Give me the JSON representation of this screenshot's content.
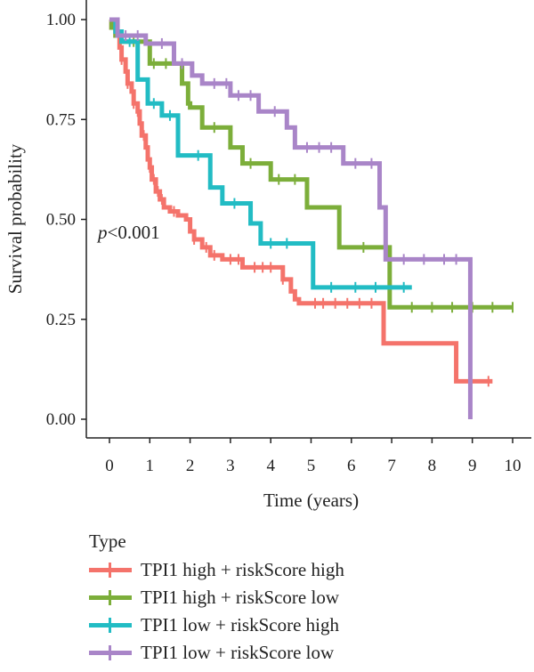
{
  "chart_data": {
    "type": "line",
    "subtype": "kaplan-meier step",
    "ylabel": "Survival probability",
    "xlabel": "Time (years)",
    "xlim": [
      -0.5,
      10.5
    ],
    "ylim": [
      0,
      1.0
    ],
    "x_ticks": [
      0,
      1,
      2,
      3,
      4,
      5,
      6,
      7,
      8,
      9,
      10
    ],
    "y_ticks": [
      "0.00",
      "0.25",
      "0.50",
      "0.75",
      "1.00"
    ],
    "annotation": "p<0.001",
    "legend": {
      "title": "Type",
      "placement": "bottom-left"
    },
    "series": [
      {
        "name": "TPI1 high + riskScore high",
        "color": "#F4736B",
        "points": [
          [
            0,
            1.0
          ],
          [
            0.05,
            0.98
          ],
          [
            0.15,
            0.96
          ],
          [
            0.25,
            0.93
          ],
          [
            0.3,
            0.9
          ],
          [
            0.4,
            0.87
          ],
          [
            0.45,
            0.84
          ],
          [
            0.55,
            0.82
          ],
          [
            0.6,
            0.79
          ],
          [
            0.7,
            0.77
          ],
          [
            0.75,
            0.74
          ],
          [
            0.8,
            0.71
          ],
          [
            0.9,
            0.68
          ],
          [
            0.95,
            0.65
          ],
          [
            1.0,
            0.63
          ],
          [
            1.05,
            0.6
          ],
          [
            1.15,
            0.57
          ],
          [
            1.25,
            0.55
          ],
          [
            1.35,
            0.53
          ],
          [
            1.5,
            0.52
          ],
          [
            1.7,
            0.51
          ],
          [
            1.9,
            0.5
          ],
          [
            2.0,
            0.47
          ],
          [
            2.1,
            0.45
          ],
          [
            2.3,
            0.43
          ],
          [
            2.5,
            0.41
          ],
          [
            2.8,
            0.4
          ],
          [
            3.3,
            0.38
          ],
          [
            4.3,
            0.35
          ],
          [
            4.5,
            0.32
          ],
          [
            4.6,
            0.3
          ],
          [
            4.7,
            0.29
          ],
          [
            6.8,
            0.19
          ],
          [
            8.6,
            0.095
          ],
          [
            9.5,
            0.095
          ]
        ],
        "censor_x": [
          0.3,
          0.45,
          0.6,
          0.7,
          0.85,
          1.0,
          1.1,
          1.2,
          1.3,
          1.6,
          2.1,
          2.4,
          2.6,
          3.0,
          3.2,
          3.6,
          3.8,
          4.0,
          4.3,
          5.1,
          5.3,
          5.6,
          5.9,
          6.2,
          6.5,
          9.4
        ]
      },
      {
        "name": "TPI1 high + riskScore low",
        "color": "#7CAE3A",
        "points": [
          [
            0,
            1.0
          ],
          [
            0.05,
            0.98
          ],
          [
            0.15,
            0.96
          ],
          [
            0.3,
            0.945
          ],
          [
            1.0,
            0.89
          ],
          [
            1.8,
            0.84
          ],
          [
            1.95,
            0.79
          ],
          [
            2.0,
            0.78
          ],
          [
            2.3,
            0.73
          ],
          [
            3.0,
            0.68
          ],
          [
            3.3,
            0.64
          ],
          [
            4.0,
            0.6
          ],
          [
            4.9,
            0.53
          ],
          [
            5.7,
            0.43
          ],
          [
            6.8,
            0.43
          ],
          [
            6.95,
            0.28
          ],
          [
            10.0,
            0.28
          ]
        ],
        "censor_x": [
          0.6,
          1.1,
          1.4,
          2.6,
          3.5,
          4.2,
          4.6,
          6.3,
          7.5,
          8.0,
          8.5,
          9.0,
          9.5,
          10.0
        ]
      },
      {
        "name": "TPI1 low + riskScore high",
        "color": "#22BCC4",
        "points": [
          [
            0,
            1.0
          ],
          [
            0.15,
            0.97
          ],
          [
            0.3,
            0.945
          ],
          [
            0.7,
            0.85
          ],
          [
            0.95,
            0.79
          ],
          [
            1.3,
            0.76
          ],
          [
            1.7,
            0.66
          ],
          [
            2.5,
            0.58
          ],
          [
            2.8,
            0.54
          ],
          [
            3.5,
            0.49
          ],
          [
            3.75,
            0.44
          ],
          [
            5.05,
            0.33
          ],
          [
            7.5,
            0.33
          ]
        ],
        "censor_x": [
          0.5,
          1.1,
          1.5,
          2.2,
          3.1,
          4.0,
          4.4,
          5.5,
          6.1,
          6.6,
          7.3
        ]
      },
      {
        "name": "TPI1 low + riskScore low",
        "color": "#A985C8",
        "points": [
          [
            0,
            1.0
          ],
          [
            0.2,
            0.96
          ],
          [
            0.9,
            0.94
          ],
          [
            1.6,
            0.89
          ],
          [
            2.05,
            0.86
          ],
          [
            2.3,
            0.84
          ],
          [
            3.0,
            0.81
          ],
          [
            3.7,
            0.77
          ],
          [
            4.4,
            0.73
          ],
          [
            4.6,
            0.68
          ],
          [
            5.8,
            0.64
          ],
          [
            6.7,
            0.53
          ],
          [
            6.85,
            0.4
          ],
          [
            8.9,
            0.4
          ],
          [
            8.95,
            0.0
          ]
        ],
        "censor_x": [
          0.4,
          0.7,
          1.3,
          1.8,
          2.6,
          2.9,
          3.2,
          3.5,
          4.1,
          4.9,
          5.2,
          5.5,
          6.1,
          6.5,
          7.3,
          7.8,
          8.3,
          8.6
        ]
      }
    ]
  }
}
